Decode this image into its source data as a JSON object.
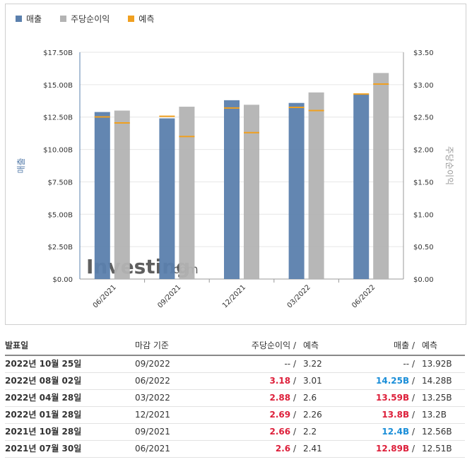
{
  "legend": [
    {
      "label": "매출",
      "color": "#5b80ad"
    },
    {
      "label": "주당순이익",
      "color": "#b3b3b3"
    },
    {
      "label": "예측",
      "color": "#f0a020"
    }
  ],
  "chart_data": {
    "type": "bar",
    "categories": [
      "06/2021",
      "09/2021",
      "12/2021",
      "03/2022",
      "06/2022"
    ],
    "series": [
      {
        "name": "매출",
        "axis": "left",
        "color": "#5b80ad",
        "values": [
          12.89,
          12.4,
          13.8,
          13.59,
          14.25
        ]
      },
      {
        "name": "주당순이익",
        "axis": "right",
        "color": "#b3b3b3",
        "values": [
          2.6,
          2.66,
          2.69,
          2.88,
          3.18
        ]
      }
    ],
    "forecast": {
      "name": "예측",
      "color": "#f0a020",
      "revenue": [
        12.51,
        12.56,
        13.2,
        13.25,
        14.28
      ],
      "eps": [
        2.41,
        2.2,
        2.26,
        2.6,
        3.01
      ]
    },
    "ylabel_left": "매출",
    "ylabel_right": "주당순이익",
    "y_left": {
      "range": [
        0,
        17.5
      ],
      "ticks": [
        "$0.00",
        "$2.50B",
        "$5.00B",
        "$7.50B",
        "$10.00B",
        "$12.50B",
        "$15.00B",
        "$17.50B"
      ]
    },
    "y_right": {
      "range": [
        0,
        3.5
      ],
      "ticks": [
        "$0.00",
        "$0.50",
        "$1.00",
        "$1.50",
        "$2.00",
        "$2.50",
        "$3.00",
        "$3.50"
      ]
    },
    "grid": true,
    "legend_position": "top-left"
  },
  "watermark": {
    "text": "Investing",
    "suffix": ".com"
  },
  "table": {
    "headers": {
      "date": "발표일",
      "period": "마감 기준",
      "eps": "주당순이익",
      "eps_forecast": "예측",
      "revenue": "매출",
      "revenue_forecast": "예측"
    },
    "slash": "/",
    "rows": [
      {
        "date": "2022년 10월 25일",
        "period": "09/2022",
        "eps": "--",
        "eps_forecast": "3.22",
        "revenue": "--",
        "revenue_forecast": "13.92B",
        "eps_dir": "none",
        "rev_dir": "none"
      },
      {
        "date": "2022년 08월 02일",
        "period": "06/2022",
        "eps": "3.18",
        "eps_forecast": "3.01",
        "revenue": "14.25B",
        "revenue_forecast": "14.28B",
        "eps_dir": "up",
        "rev_dir": "down"
      },
      {
        "date": "2022년 04월 28일",
        "period": "03/2022",
        "eps": "2.88",
        "eps_forecast": "2.6",
        "revenue": "13.59B",
        "revenue_forecast": "13.25B",
        "eps_dir": "up",
        "rev_dir": "up"
      },
      {
        "date": "2022년 01월 28일",
        "period": "12/2021",
        "eps": "2.69",
        "eps_forecast": "2.26",
        "revenue": "13.8B",
        "revenue_forecast": "13.2B",
        "eps_dir": "up",
        "rev_dir": "up"
      },
      {
        "date": "2021년 10월 28일",
        "period": "09/2021",
        "eps": "2.66",
        "eps_forecast": "2.2",
        "revenue": "12.4B",
        "revenue_forecast": "12.56B",
        "eps_dir": "up",
        "rev_dir": "down"
      },
      {
        "date": "2021년 07월 30일",
        "period": "06/2021",
        "eps": "2.6",
        "eps_forecast": "2.41",
        "revenue": "12.89B",
        "revenue_forecast": "12.51B",
        "eps_dir": "up",
        "rev_dir": "up"
      }
    ]
  }
}
